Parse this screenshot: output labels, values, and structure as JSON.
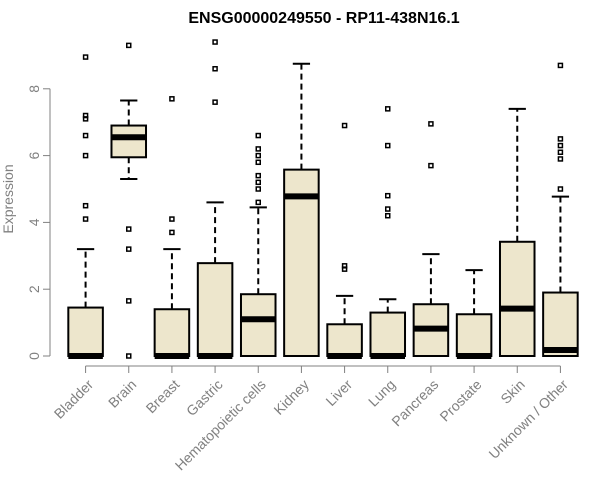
{
  "chart_data": {
    "type": "boxplot",
    "title": "ENSG00000249550 - RP11-438N16.1",
    "xlabel": "",
    "ylabel": "Expression",
    "ylim": [
      0,
      9.6
    ],
    "yticks": [
      0,
      2,
      4,
      6,
      8
    ],
    "grid": false,
    "legend": "none",
    "colors": {
      "box_fill": "#ede6cc",
      "stroke": "#000000",
      "axis": "#808080"
    },
    "categories": [
      "Bladder",
      "Brain",
      "Breast",
      "Gastric",
      "Hematopoietic cells",
      "Kidney",
      "Liver",
      "Lung",
      "Pancreas",
      "Prostate",
      "Skin",
      "Unknown / Other"
    ],
    "boxes": [
      {
        "min": 0,
        "q1": 0,
        "median": 0,
        "q3": 1.45,
        "max": 3.2,
        "outliers": [
          4.1,
          4.5,
          6.0,
          6.6,
          7.1,
          7.2,
          8.95
        ]
      },
      {
        "min": 5.3,
        "q1": 5.95,
        "median": 6.55,
        "q3": 6.9,
        "max": 7.65,
        "outliers": [
          0,
          1.65,
          3.2,
          3.8,
          9.3
        ]
      },
      {
        "min": 0,
        "q1": 0,
        "median": 0,
        "q3": 1.4,
        "max": 3.2,
        "outliers": [
          3.7,
          4.1,
          7.7
        ]
      },
      {
        "min": 0,
        "q1": 0,
        "median": 0,
        "q3": 2.78,
        "max": 4.6,
        "outliers": [
          7.6,
          8.6,
          9.4
        ]
      },
      {
        "min": 0,
        "q1": 0,
        "median": 1.1,
        "q3": 1.85,
        "max": 4.45,
        "outliers": [
          4.6,
          5.0,
          5.2,
          5.4,
          5.8,
          6.0,
          6.2,
          6.6
        ]
      },
      {
        "min": 0,
        "q1": 0,
        "median": 4.78,
        "q3": 5.58,
        "max": 8.75,
        "outliers": []
      },
      {
        "min": 0,
        "q1": 0,
        "median": 0,
        "q3": 0.95,
        "max": 1.8,
        "outliers": [
          2.6,
          2.7,
          6.9
        ]
      },
      {
        "min": 0,
        "q1": 0,
        "median": 0,
        "q3": 1.3,
        "max": 1.7,
        "outliers": [
          4.2,
          4.4,
          4.8,
          6.3,
          7.4
        ]
      },
      {
        "min": 0,
        "q1": 0,
        "median": 0.82,
        "q3": 1.55,
        "max": 3.05,
        "outliers": [
          5.7,
          6.95
        ]
      },
      {
        "min": 0,
        "q1": 0,
        "median": 0,
        "q3": 1.25,
        "max": 2.57,
        "outliers": []
      },
      {
        "min": 0,
        "q1": 0,
        "median": 1.42,
        "q3": 3.42,
        "max": 7.4,
        "outliers": []
      },
      {
        "min": 0,
        "q1": 0,
        "median": 0.18,
        "q3": 1.9,
        "max": 4.77,
        "outliers": [
          5.0,
          5.9,
          6.1,
          6.3,
          6.5,
          8.7
        ]
      }
    ]
  }
}
